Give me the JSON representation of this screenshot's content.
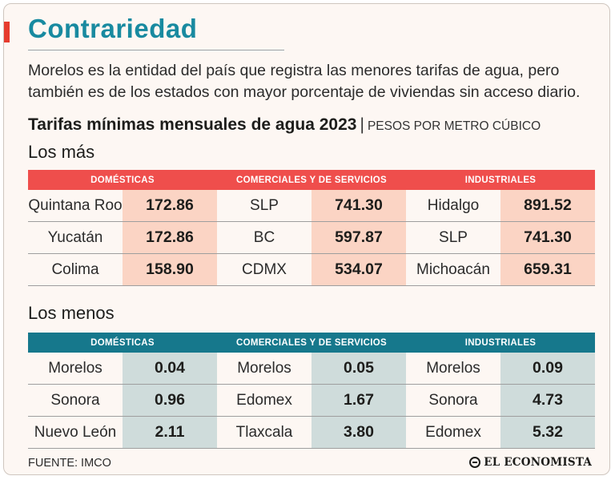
{
  "title": "Contrariedad",
  "intro": "Morelos es la entidad del país que registra las menores tarifas de agua, pero también es de los estados con mayor porcentaje de viviendas sin acceso diario.",
  "chart_title": "Tarifas mínimas mensuales de agua 2023",
  "unit_label": "PESOS POR METRO CÚBICO",
  "separator": "|",
  "colors": {
    "accent": "#e63c2f",
    "title": "#188aa0",
    "mas_header": "#ef4e4c",
    "mas_value_bg": "#fbd4c4",
    "menos_header": "#16788c",
    "menos_value_bg": "#cfdcdb"
  },
  "chart_data": {
    "type": "table",
    "title": "Tarifas mínimas mensuales de agua 2023",
    "unit": "PESOS POR METRO CÚBICO",
    "columns": [
      "DOMÉSTICAS",
      "COMERCIALES Y DE SERVICIOS",
      "INDUSTRIALES"
    ],
    "sections": [
      {
        "label": "Los más",
        "groups": [
          {
            "category": "DOMÉSTICAS",
            "rows": [
              {
                "state": "Quintana Roo",
                "value": "172.86"
              },
              {
                "state": "Yucatán",
                "value": "172.86"
              },
              {
                "state": "Colima",
                "value": "158.90"
              }
            ]
          },
          {
            "category": "COMERCIALES Y DE SERVICIOS",
            "rows": [
              {
                "state": "SLP",
                "value": "741.30"
              },
              {
                "state": "BC",
                "value": "597.87"
              },
              {
                "state": "CDMX",
                "value": "534.07"
              }
            ]
          },
          {
            "category": "INDUSTRIALES",
            "rows": [
              {
                "state": "Hidalgo",
                "value": "891.52"
              },
              {
                "state": "SLP",
                "value": "741.30"
              },
              {
                "state": "Michoacán",
                "value": "659.31"
              }
            ]
          }
        ]
      },
      {
        "label": "Los menos",
        "groups": [
          {
            "category": "DOMÉSTICAS",
            "rows": [
              {
                "state": "Morelos",
                "value": "0.04"
              },
              {
                "state": "Sonora",
                "value": "0.96"
              },
              {
                "state": "Nuevo León",
                "value": "2.11"
              }
            ]
          },
          {
            "category": "COMERCIALES Y DE SERVICIOS",
            "rows": [
              {
                "state": "Morelos",
                "value": "0.05"
              },
              {
                "state": "Edomex",
                "value": "1.67"
              },
              {
                "state": "Tlaxcala",
                "value": "3.80"
              }
            ]
          },
          {
            "category": "INDUSTRIALES",
            "rows": [
              {
                "state": "Morelos",
                "value": "0.09"
              },
              {
                "state": "Sonora",
                "value": "4.73"
              },
              {
                "state": "Edomex",
                "value": "5.32"
              }
            ]
          }
        ]
      }
    ]
  },
  "footer": {
    "source": "FUENTE: IMCO",
    "logo_text": "EL ECONOMISTA",
    "logo_icon": "el-economista-logo-icon"
  }
}
